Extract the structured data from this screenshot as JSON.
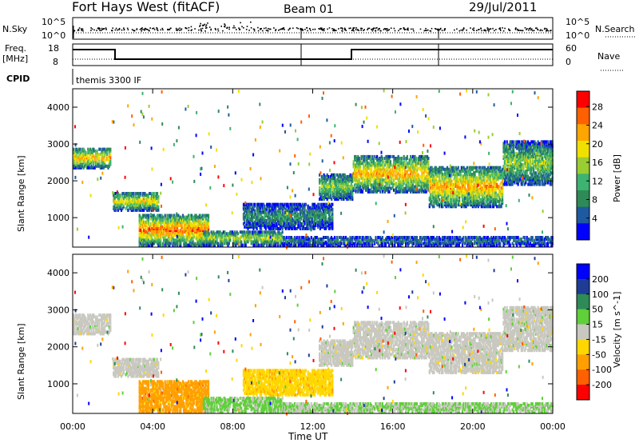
{
  "header": {
    "title": "Fort Hays West (fitACF)",
    "beam": "Beam 01",
    "date": "29/Jul/2011"
  },
  "top_strip": {
    "left_label": "N.Sky",
    "right_label": "N.Search",
    "left_ticks": [
      "10^5",
      "10^0"
    ],
    "right_ticks": [
      "10^5",
      "10^0"
    ]
  },
  "freq_strip": {
    "left_label_line1": "Freq.",
    "left_label_line2": "[MHz]",
    "right_label": "Nave",
    "left_ticks": [
      "18",
      "8"
    ],
    "right_ticks": [
      "60",
      "0"
    ]
  },
  "cpid": {
    "label": "CPID",
    "value": "themis 3300 IF"
  },
  "chart_data": [
    {
      "type": "heatmap",
      "ylabel": "Slant Range [km]",
      "yticks": [
        1000,
        2000,
        3000,
        4000
      ],
      "ylim": [
        200,
        4500
      ],
      "xticks": [
        "00:00",
        "04:00",
        "08:00",
        "12:00",
        "16:00",
        "20:00",
        "00:00"
      ],
      "xlim_hours": [
        0,
        24
      ],
      "colorbar": {
        "label": "Power [dB]",
        "ticks": [
          "4",
          "8",
          "12",
          "16",
          "20",
          "24",
          "28"
        ],
        "range": [
          0,
          30
        ],
        "colors": [
          "#0000ff",
          "#1e5aa0",
          "#2e8b57",
          "#3cb371",
          "#9acd32",
          "#f0e000",
          "#ffa500",
          "#ff6000",
          "#ff0000"
        ]
      },
      "echo_bands": [
        {
          "t0": 0.0,
          "t1": 1.9,
          "r0": 2350,
          "r1": 2900,
          "peak": 0.7
        },
        {
          "t0": 2.0,
          "t1": 4.3,
          "r0": 1200,
          "r1": 1700,
          "peak": 0.65
        },
        {
          "t0": 3.3,
          "t1": 6.8,
          "r0": 250,
          "r1": 1100,
          "peak": 0.85
        },
        {
          "t0": 6.5,
          "t1": 10.5,
          "r0": 250,
          "r1": 650,
          "peak": 0.55
        },
        {
          "t0": 8.5,
          "t1": 13.0,
          "r0": 700,
          "r1": 1400,
          "peak": 0.3
        },
        {
          "t0": 12.3,
          "t1": 14.0,
          "r0": 1500,
          "r1": 2200,
          "peak": 0.5
        },
        {
          "t0": 14.0,
          "t1": 17.8,
          "r0": 1700,
          "r1": 2700,
          "peak": 0.72
        },
        {
          "t0": 17.8,
          "t1": 21.5,
          "r0": 1300,
          "r1": 2400,
          "peak": 0.75
        },
        {
          "t0": 21.5,
          "t1": 24.0,
          "r0": 1900,
          "r1": 3100,
          "peak": 0.5
        },
        {
          "t0": 10.5,
          "t1": 24.0,
          "r0": 250,
          "r1": 500,
          "peak": 0.25
        }
      ]
    },
    {
      "type": "heatmap",
      "ylabel": "Slant Range [km]",
      "yticks": [
        1000,
        2000,
        3000,
        4000
      ],
      "ylim": [
        200,
        4500
      ],
      "xticks": [
        "00:00",
        "04:00",
        "08:00",
        "12:00",
        "16:00",
        "20:00",
        "00:00"
      ],
      "xlim_hours": [
        0,
        24
      ],
      "xlabel": "Time UT",
      "colorbar": {
        "label": "Velocity [m s^-1]",
        "ticks": [
          "200",
          "100",
          "50",
          "15",
          "-15",
          "-50",
          "-100",
          "-200"
        ],
        "range": [
          -250,
          250
        ],
        "colors": [
          "#0000ff",
          "#1e3c96",
          "#2e8b57",
          "#5fcf3a",
          "#c8c8c0",
          "#ffd700",
          "#ffa000",
          "#ff6000",
          "#ff0000"
        ]
      },
      "echo_bands": [
        {
          "t0": 0.0,
          "t1": 1.9,
          "r0": 2350,
          "r1": 2900,
          "vel": 0
        },
        {
          "t0": 2.0,
          "t1": 4.3,
          "r0": 1200,
          "r1": 1700,
          "vel": 0
        },
        {
          "t0": 3.3,
          "t1": 6.8,
          "r0": 250,
          "r1": 1100,
          "vel": -110
        },
        {
          "t0": 6.5,
          "t1": 10.5,
          "r0": 250,
          "r1": 650,
          "vel": 40
        },
        {
          "t0": 8.5,
          "t1": 13.0,
          "r0": 700,
          "r1": 1400,
          "vel": -60
        },
        {
          "t0": 12.3,
          "t1": 14.0,
          "r0": 1500,
          "r1": 2200,
          "vel": 0
        },
        {
          "t0": 14.0,
          "t1": 17.8,
          "r0": 1700,
          "r1": 2700,
          "vel": 0
        },
        {
          "t0": 17.8,
          "t1": 21.5,
          "r0": 1300,
          "r1": 2400,
          "vel": 0
        },
        {
          "t0": 21.5,
          "t1": 24.0,
          "r0": 1900,
          "r1": 3100,
          "vel": 0
        },
        {
          "t0": 10.5,
          "t1": 24.0,
          "r0": 250,
          "r1": 500,
          "vel": 30
        }
      ]
    }
  ]
}
